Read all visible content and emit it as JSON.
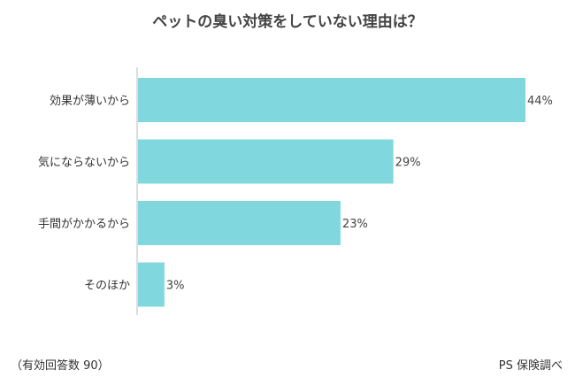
{
  "chart_data": {
    "type": "bar",
    "orientation": "horizontal",
    "title": "ペットの臭い対策をしていない理由は？",
    "categories": [
      "効果が薄いから",
      "気にならないから",
      "手間がかかるから",
      "そのほか"
    ],
    "values": [
      44,
      29,
      23,
      3
    ],
    "value_labels": [
      "44%",
      "29%",
      "23%",
      "3%"
    ],
    "xlim": [
      0,
      44
    ],
    "bar_color": "#80D8DE",
    "grid": false
  },
  "footer": {
    "sample_note": "（有効回答数 90）",
    "source": "PS 保険調べ"
  }
}
